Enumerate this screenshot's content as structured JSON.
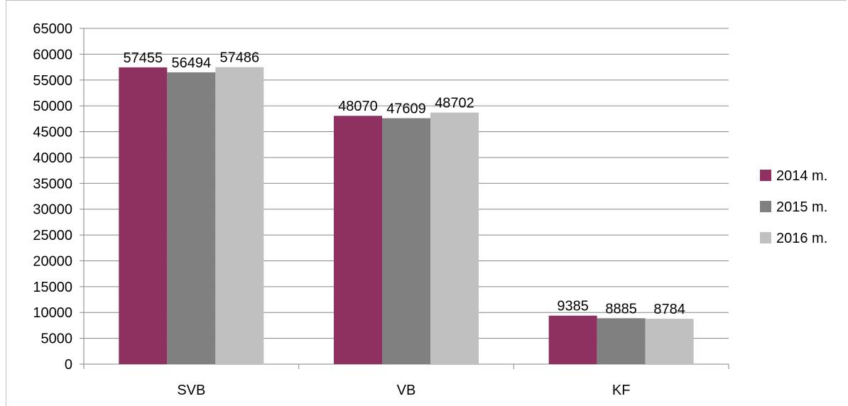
{
  "chart_data": {
    "type": "bar",
    "title": "",
    "xlabel": "",
    "ylabel": "",
    "categories": [
      "SVB",
      "VB",
      "KF"
    ],
    "series": [
      {
        "name": "2014 m.",
        "values": [
          57455,
          48070,
          9385
        ],
        "color": "#8e3060"
      },
      {
        "name": "2015 m.",
        "values": [
          56494,
          47609,
          8885
        ],
        "color": "#808080"
      },
      {
        "name": "2016 m.",
        "values": [
          57486,
          48702,
          8784
        ],
        "color": "#c0c0c0"
      }
    ],
    "ylim": [
      0,
      65000
    ],
    "ystep": 5000,
    "grid": true,
    "legend_position": "right",
    "data_labels": true
  }
}
